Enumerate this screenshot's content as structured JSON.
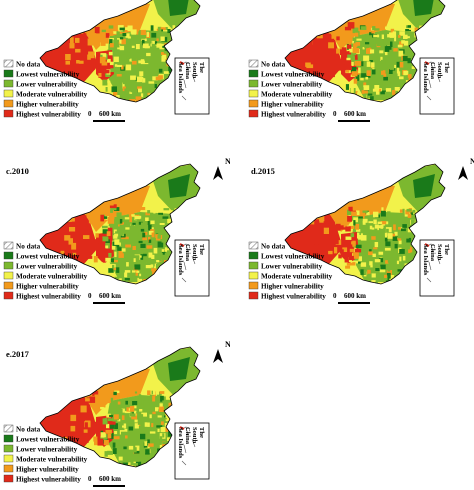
{
  "panels": [
    {
      "id": "a",
      "label": ""
    },
    {
      "id": "b",
      "label": ""
    },
    {
      "id": "c",
      "label": "c.2010"
    },
    {
      "id": "d",
      "label": "d.2015"
    },
    {
      "id": "e",
      "label": "e.2017"
    }
  ],
  "legend": {
    "items": [
      {
        "label": "No data",
        "color": "#d9d9d9",
        "pattern": "hatch"
      },
      {
        "label": "Lowest vulnerability",
        "color": "#1a7a1a"
      },
      {
        "label": "Lower vulnerability",
        "color": "#7cb82f"
      },
      {
        "label": "Moderate vulnerability",
        "color": "#f2f24a"
      },
      {
        "label": "Higher vulnerability",
        "color": "#f29a1c"
      },
      {
        "label": "Highest vulnerability",
        "color": "#e02a1a"
      }
    ]
  },
  "scale_bar": {
    "start": "0",
    "end": "600 km"
  },
  "north_arrow": "N",
  "inset_label": [
    "The",
    "South",
    "China",
    "Sea Islands"
  ],
  "palette": {
    "nodata": "#d9d9d9",
    "lowest": "#1a7a1a",
    "lower": "#7cb82f",
    "moderate": "#f2f24a",
    "higher": "#f29a1c",
    "highest": "#e02a1a",
    "outline": "#000000"
  }
}
